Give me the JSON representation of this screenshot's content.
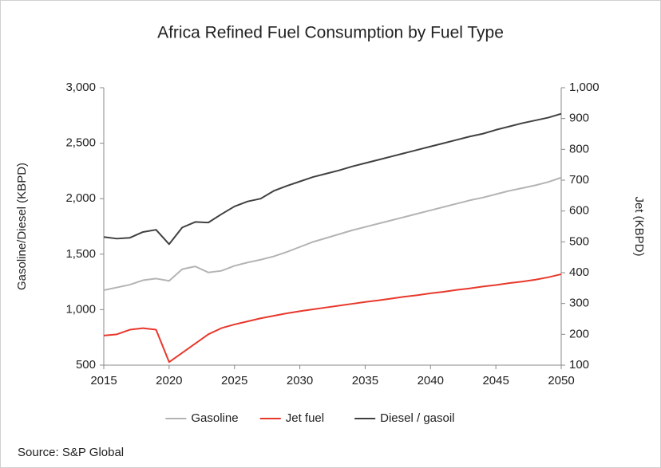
{
  "chart_data": {
    "type": "line",
    "title": "Africa Refined Fuel Consumption by Fuel Type",
    "ylabel": "Gasoline/Diesel (KBPD)",
    "y2label": "Jet (KBPD)",
    "source": "Source: S&P Global",
    "x": [
      2015,
      2016,
      2017,
      2018,
      2019,
      2020,
      2021,
      2022,
      2023,
      2024,
      2025,
      2026,
      2027,
      2028,
      2029,
      2030,
      2031,
      2032,
      2033,
      2034,
      2035,
      2036,
      2037,
      2038,
      2039,
      2040,
      2041,
      2042,
      2043,
      2044,
      2045,
      2046,
      2047,
      2048,
      2049,
      2050
    ],
    "xlim": [
      2015,
      2050
    ],
    "xticks": [
      2015,
      2020,
      2025,
      2030,
      2035,
      2040,
      2045,
      2050
    ],
    "ylim": [
      500,
      3000
    ],
    "yticks": [
      500,
      {
        "value": 1000,
        "label": "1,000"
      },
      {
        "value": 1500,
        "label": "1,500"
      },
      {
        "value": 2000,
        "label": "2,000"
      },
      {
        "value": 2500,
        "label": "2,500"
      },
      {
        "value": 3000,
        "label": "3,000"
      }
    ],
    "y2lim": [
      100,
      1000
    ],
    "y2ticks": [
      100,
      200,
      300,
      400,
      500,
      600,
      700,
      800,
      900,
      {
        "value": 1000,
        "label": "1,000"
      }
    ],
    "legend": "bottom",
    "series": [
      {
        "name": "Gasoline",
        "color": "#b4b4b4",
        "axis": "y",
        "values": [
          1175,
          1200,
          1225,
          1265,
          1280,
          1260,
          1365,
          1390,
          1335,
          1350,
          1395,
          1425,
          1450,
          1480,
          1520,
          1565,
          1610,
          1645,
          1680,
          1715,
          1745,
          1775,
          1805,
          1835,
          1865,
          1895,
          1925,
          1955,
          1985,
          2010,
          2040,
          2070,
          2095,
          2120,
          2150,
          2190
        ]
      },
      {
        "name": "Jet fuel",
        "color": "#e8382b",
        "axis": "y2",
        "values": [
          196,
          200,
          215,
          220,
          215,
          110,
          140,
          170,
          200,
          220,
          232,
          242,
          252,
          260,
          268,
          275,
          281,
          287,
          293,
          299,
          305,
          310,
          316,
          322,
          327,
          333,
          338,
          344,
          349,
          355,
          360,
          366,
          371,
          377,
          385,
          395
        ]
      },
      {
        "name": "Diesel / gasoil",
        "color": "#404040",
        "axis": "y",
        "values": [
          1655,
          1640,
          1648,
          1700,
          1720,
          1590,
          1740,
          1790,
          1785,
          1860,
          1930,
          1975,
          2000,
          2070,
          2115,
          2155,
          2195,
          2225,
          2255,
          2290,
          2320,
          2350,
          2380,
          2410,
          2440,
          2470,
          2500,
          2530,
          2560,
          2585,
          2620,
          2650,
          2680,
          2705,
          2730,
          2765
        ]
      }
    ]
  }
}
